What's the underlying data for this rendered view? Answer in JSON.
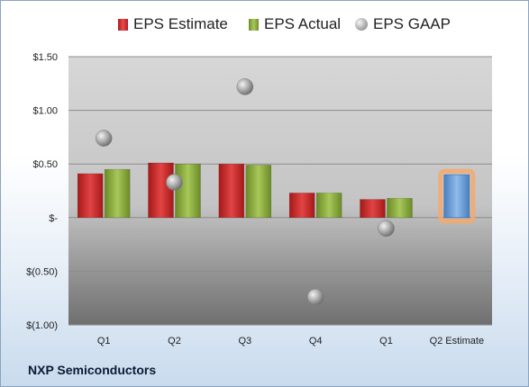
{
  "legend": {
    "estimate": "EPS Estimate",
    "actual": "EPS Actual",
    "gaap": "EPS GAAP"
  },
  "footer": "NXP Semiconductors",
  "chart_data": {
    "type": "bar",
    "categories": [
      "Q1",
      "Q2",
      "Q3",
      "Q4",
      "Q1",
      "Q2 Estimate"
    ],
    "series": [
      {
        "name": "EPS Estimate",
        "type": "bar",
        "color": "#c62828",
        "values": [
          0.41,
          0.51,
          0.5,
          0.23,
          0.17,
          null
        ]
      },
      {
        "name": "EPS Actual",
        "type": "bar",
        "color": "#8cb43c",
        "values": [
          0.45,
          0.5,
          0.49,
          0.23,
          0.18,
          null
        ]
      },
      {
        "name": "EPS GAAP",
        "type": "scatter",
        "color": "#a6a6a6",
        "values": [
          0.74,
          0.33,
          1.22,
          -0.74,
          -0.1,
          null
        ]
      },
      {
        "name": "",
        "type": "bar",
        "color": "#5b9bd5",
        "highlight": "#f5a96b",
        "values": [
          null,
          null,
          null,
          null,
          null,
          0.4
        ]
      }
    ],
    "ylim": [
      -1.0,
      1.5
    ],
    "yticks": [
      1.5,
      1.0,
      0.5,
      0,
      -0.5,
      -1.0
    ],
    "ytick_labels": [
      "$1.50",
      "$1.00",
      "$0.50",
      "$-",
      "$(0.50)",
      "$(1.00)"
    ],
    "grid": true,
    "legend_position": "top"
  }
}
